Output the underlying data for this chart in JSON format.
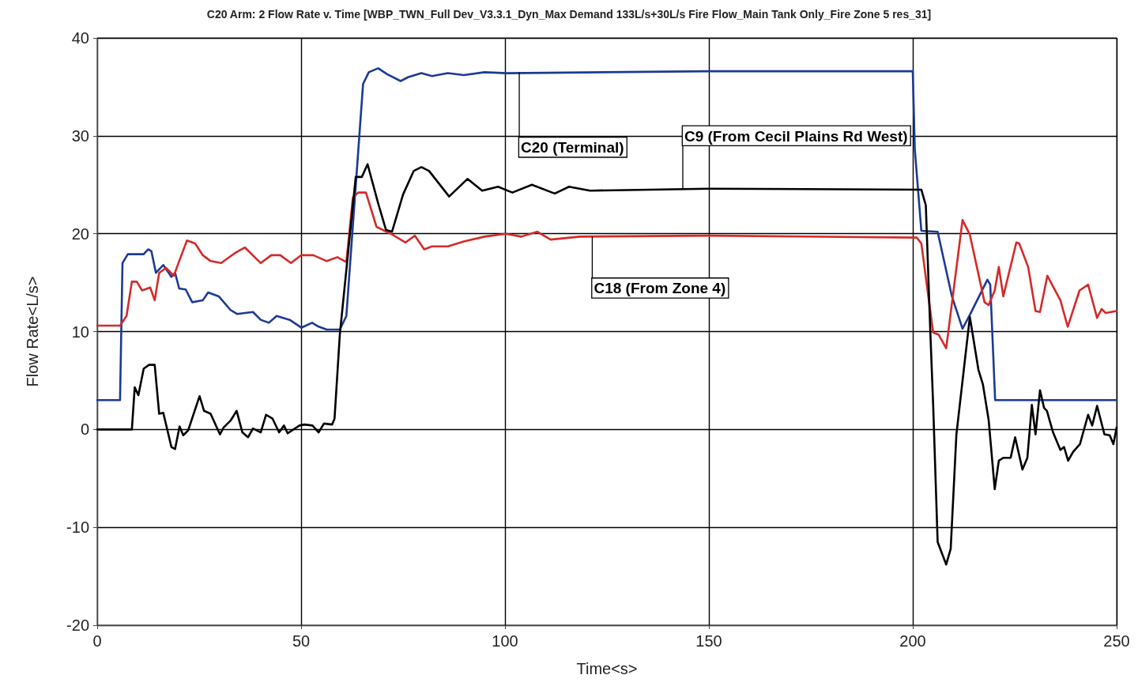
{
  "chart_data": {
    "type": "line",
    "title": "C20 Arm: 2 Flow Rate v. Time [WBP_TWN_Full Dev_V3.3.1_Dyn_Max Demand 133L/s+30L/s Fire Flow_Main Tank Only_Fire Zone 5 res_31]",
    "xlabel": "Time<s>",
    "ylabel": "Flow Rate<L/s>",
    "xlim": [
      0,
      250
    ],
    "xticks": [
      0,
      50,
      100,
      150,
      200,
      250
    ],
    "ylim": [
      -20,
      40
    ],
    "yticks": [
      -20,
      -10,
      0,
      10,
      20,
      30,
      40
    ],
    "grid": true,
    "marker": "none",
    "line_style": "solid",
    "series": [
      {
        "color": "#1c3a94",
        "x": [
          0,
          5.6,
          6.2,
          7.5,
          11.4,
          12.5,
          13.3,
          14.4,
          16.2,
          18.2,
          19.1,
          20.1,
          21.7,
          23.3,
          25.9,
          27.2,
          29.8,
          32.7,
          34.3,
          38.2,
          40.1,
          42.1,
          44.0,
          47.2,
          50.1,
          52.7,
          54.3,
          56.3,
          59.5,
          61.1,
          64.3,
          65.2,
          66.6,
          68.9,
          71.1,
          74.4,
          76.3,
          79.5,
          82.1,
          86,
          89.9,
          95,
          100.4,
          150,
          200,
          200.5,
          202.1,
          206.1,
          209.6,
          212.2,
          214,
          218.3,
          219,
          220.2,
          250
        ],
        "values": [
          3,
          3,
          17,
          17.9,
          17.9,
          18.4,
          18.2,
          16,
          16.8,
          15.6,
          16,
          14.4,
          14.3,
          13,
          13.2,
          14,
          13.6,
          12.2,
          11.8,
          12,
          11.2,
          10.9,
          11.6,
          11.2,
          10.4,
          10.9,
          10.5,
          10.2,
          10.2,
          11.6,
          30.1,
          35.3,
          36.5,
          36.9,
          36.3,
          35.6,
          36,
          36.4,
          36.1,
          36.4,
          36.2,
          36.5,
          36.4,
          36.6,
          36.6,
          28.6,
          20.3,
          20.2,
          13.6,
          10.3,
          11.7,
          15.3,
          14.8,
          3,
          3
        ]
      },
      {
        "color": "#d42a2a",
        "x": [
          0,
          5.6,
          7.2,
          8.5,
          9.7,
          11,
          13,
          14.1,
          15.2,
          16.9,
          18.8,
          20.1,
          22,
          24,
          25.9,
          27.8,
          30.4,
          33.7,
          36.2,
          40.1,
          42.7,
          44.9,
          47.5,
          50,
          53,
          56.3,
          58.9,
          61.1,
          62.7,
          64,
          65.9,
          68.5,
          72.4,
          75.6,
          77.9,
          80.2,
          82.1,
          86,
          89.9,
          95,
          100.2,
          104,
          107.9,
          111.2,
          118.4,
          150,
          201,
          202.1,
          205,
          206.3,
          208.2,
          212.2,
          214,
          217.6,
          218.6,
          220.1,
          221.1,
          222.2,
          225.4,
          226.1,
          228.3,
          230.1,
          231.2,
          233,
          236.2,
          238,
          240.9,
          243,
          245.2,
          246.3,
          247.3,
          250
        ],
        "values": [
          10.6,
          10.6,
          11.6,
          15.1,
          15.1,
          14.2,
          14.5,
          13.2,
          16,
          16.5,
          15.7,
          17.2,
          19.3,
          19,
          17.8,
          17.2,
          17,
          18,
          18.6,
          17,
          17.8,
          17.8,
          17,
          17.8,
          17.8,
          17.2,
          17.6,
          17.1,
          23.7,
          24.2,
          24.2,
          20.7,
          19.9,
          19.1,
          19.8,
          18.4,
          18.7,
          18.7,
          19.2,
          19.7,
          20,
          19.7,
          20.2,
          19.4,
          19.7,
          19.8,
          19.6,
          19,
          9.9,
          9.7,
          8.3,
          21.4,
          19.9,
          13,
          12.7,
          14.2,
          16.6,
          13.6,
          19.1,
          19,
          16.6,
          12.1,
          12,
          15.7,
          13.2,
          10.5,
          14.2,
          14.8,
          11.4,
          12.3,
          11.9,
          12.1
        ]
      },
      {
        "color": "#000000",
        "x": [
          0,
          8.5,
          9.2,
          10.1,
          11.4,
          12.7,
          14.1,
          15.2,
          16.2,
          18.2,
          19.1,
          20.2,
          21.1,
          22.3,
          25.1,
          26.2,
          27.8,
          30.1,
          31,
          32.7,
          34.2,
          35.6,
          37,
          38.2,
          40.1,
          41.4,
          43,
          44.6,
          45.8,
          46.7,
          49.6,
          50.8,
          52.8,
          54.3,
          55.6,
          57.6,
          58.2,
          59.5,
          63.4,
          64.9,
          66.3,
          68.9,
          70.8,
          72.3,
          75,
          77.6,
          79.5,
          81.4,
          86.3,
          90.8,
          94.4,
          98.3,
          101.8,
          106.6,
          112.2,
          115.7,
          120.9,
          150,
          202.1,
          203.2,
          204.3,
          205,
          206.1,
          208.2,
          209.3,
          210.7,
          214,
          216.1,
          217.2,
          218.6,
          220.1,
          221.1,
          222.2,
          224,
          225.1,
          226.9,
          228.1,
          229.2,
          230.1,
          231.2,
          232.2,
          232.9,
          234.4,
          236.2,
          237.1,
          238.1,
          239.3,
          241,
          243,
          244,
          245.2,
          247,
          248.3,
          249.2,
          250
        ],
        "values": [
          0,
          0,
          4.3,
          3.5,
          6.2,
          6.6,
          6.6,
          1.6,
          1.7,
          -1.8,
          -2,
          0.3,
          -0.6,
          -0.1,
          3.4,
          1.9,
          1.6,
          -0.5,
          0.2,
          0.9,
          1.9,
          -0.3,
          -0.8,
          0.1,
          -0.3,
          1.5,
          1.1,
          -0.3,
          0.4,
          -0.4,
          0.4,
          0.5,
          0.4,
          -0.3,
          0.6,
          0.5,
          1.1,
          9.7,
          25.8,
          25.8,
          27.1,
          23.1,
          20.4,
          20.2,
          24,
          26.4,
          26.8,
          26.4,
          23.8,
          25.6,
          24.4,
          24.8,
          24.2,
          25,
          24.1,
          24.8,
          24.4,
          24.6,
          24.5,
          22.9,
          10,
          2.5,
          -11.5,
          -13.8,
          -12.2,
          -0.5,
          11.5,
          6.1,
          4.6,
          1,
          -6.1,
          -3.2,
          -2.9,
          -2.9,
          -0.8,
          -4.1,
          -2.9,
          2.5,
          -0.5,
          4,
          2.2,
          1.9,
          -0.3,
          -2.1,
          -1.8,
          -3.2,
          -2.3,
          -1.5,
          1.5,
          0.4,
          2.4,
          -0.5,
          -0.6,
          -1.5,
          0.2
        ]
      }
    ],
    "annotations": [
      {
        "text": "C20 (Terminal)",
        "x": 103.5,
        "y": 36.5
      },
      {
        "text": "C9 (From Cecil Plains Rd West)",
        "x": 143.6,
        "y": 24.6
      },
      {
        "text": "C18 (From Zone 4)",
        "x": 121.4,
        "y": 19.7
      }
    ]
  }
}
